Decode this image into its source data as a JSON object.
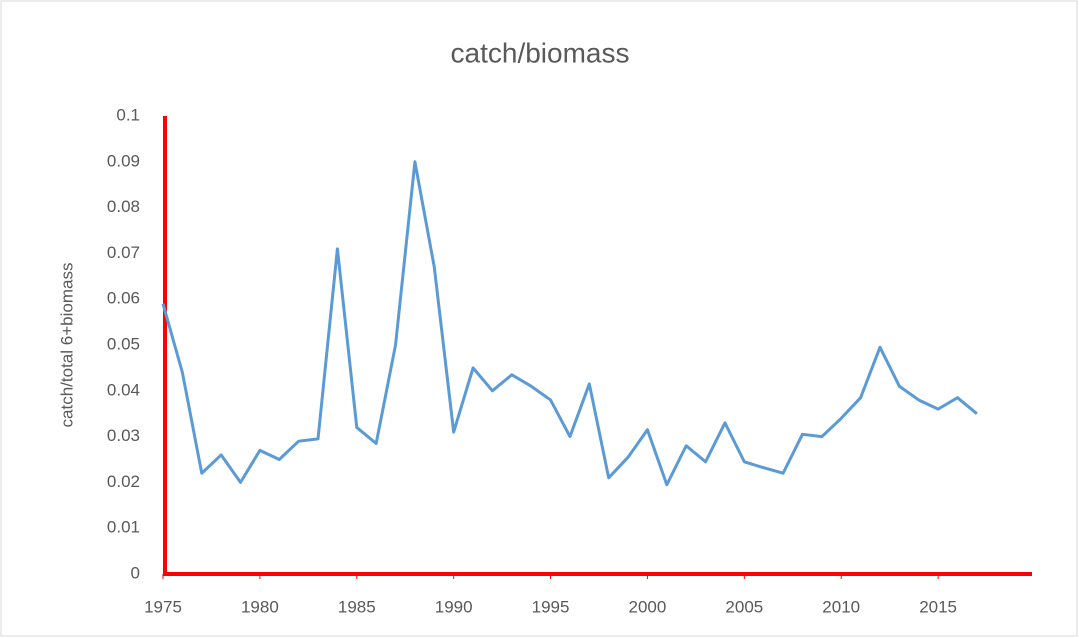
{
  "chart_data": {
    "type": "line",
    "title": "catch/biomass",
    "y_label": "catch/total 6+biomass",
    "x": [
      1975,
      1976,
      1977,
      1978,
      1979,
      1980,
      1981,
      1982,
      1983,
      1984,
      1985,
      1986,
      1987,
      1988,
      1989,
      1990,
      1991,
      1992,
      1993,
      1994,
      1995,
      1996,
      1997,
      1998,
      1999,
      2000,
      2001,
      2002,
      2003,
      2004,
      2005,
      2006,
      2007,
      2008,
      2009,
      2010,
      2011,
      2012,
      2013,
      2014,
      2015,
      2016,
      2017
    ],
    "series": [
      {
        "name": "catch/biomass",
        "color": "#5b9bd5",
        "values": [
          0.059,
          0.044,
          0.022,
          0.026,
          0.02,
          0.027,
          0.025,
          0.029,
          0.0295,
          0.071,
          0.032,
          0.0285,
          0.05,
          0.09,
          0.067,
          0.031,
          0.045,
          0.04,
          0.0435,
          0.041,
          0.038,
          0.03,
          0.0415,
          0.021,
          0.0255,
          0.0315,
          0.0195,
          0.028,
          0.0245,
          0.033,
          0.0245,
          0.0232,
          0.022,
          0.0305,
          0.03,
          0.034,
          0.0385,
          0.0495,
          0.041,
          0.038,
          0.036,
          0.0385,
          0.035
        ]
      }
    ],
    "xlim": [
      1975,
      2020
    ],
    "xticks": [
      1975,
      1980,
      1985,
      1990,
      1995,
      2000,
      2005,
      2010,
      2015
    ],
    "ylim": [
      0,
      0.1
    ],
    "yticks": [
      0,
      0.01,
      0.02,
      0.03,
      0.04,
      0.05,
      0.06,
      0.07,
      0.08,
      0.09,
      0.1
    ],
    "axis_color": "#ff0000",
    "grid": false,
    "legend": false
  }
}
